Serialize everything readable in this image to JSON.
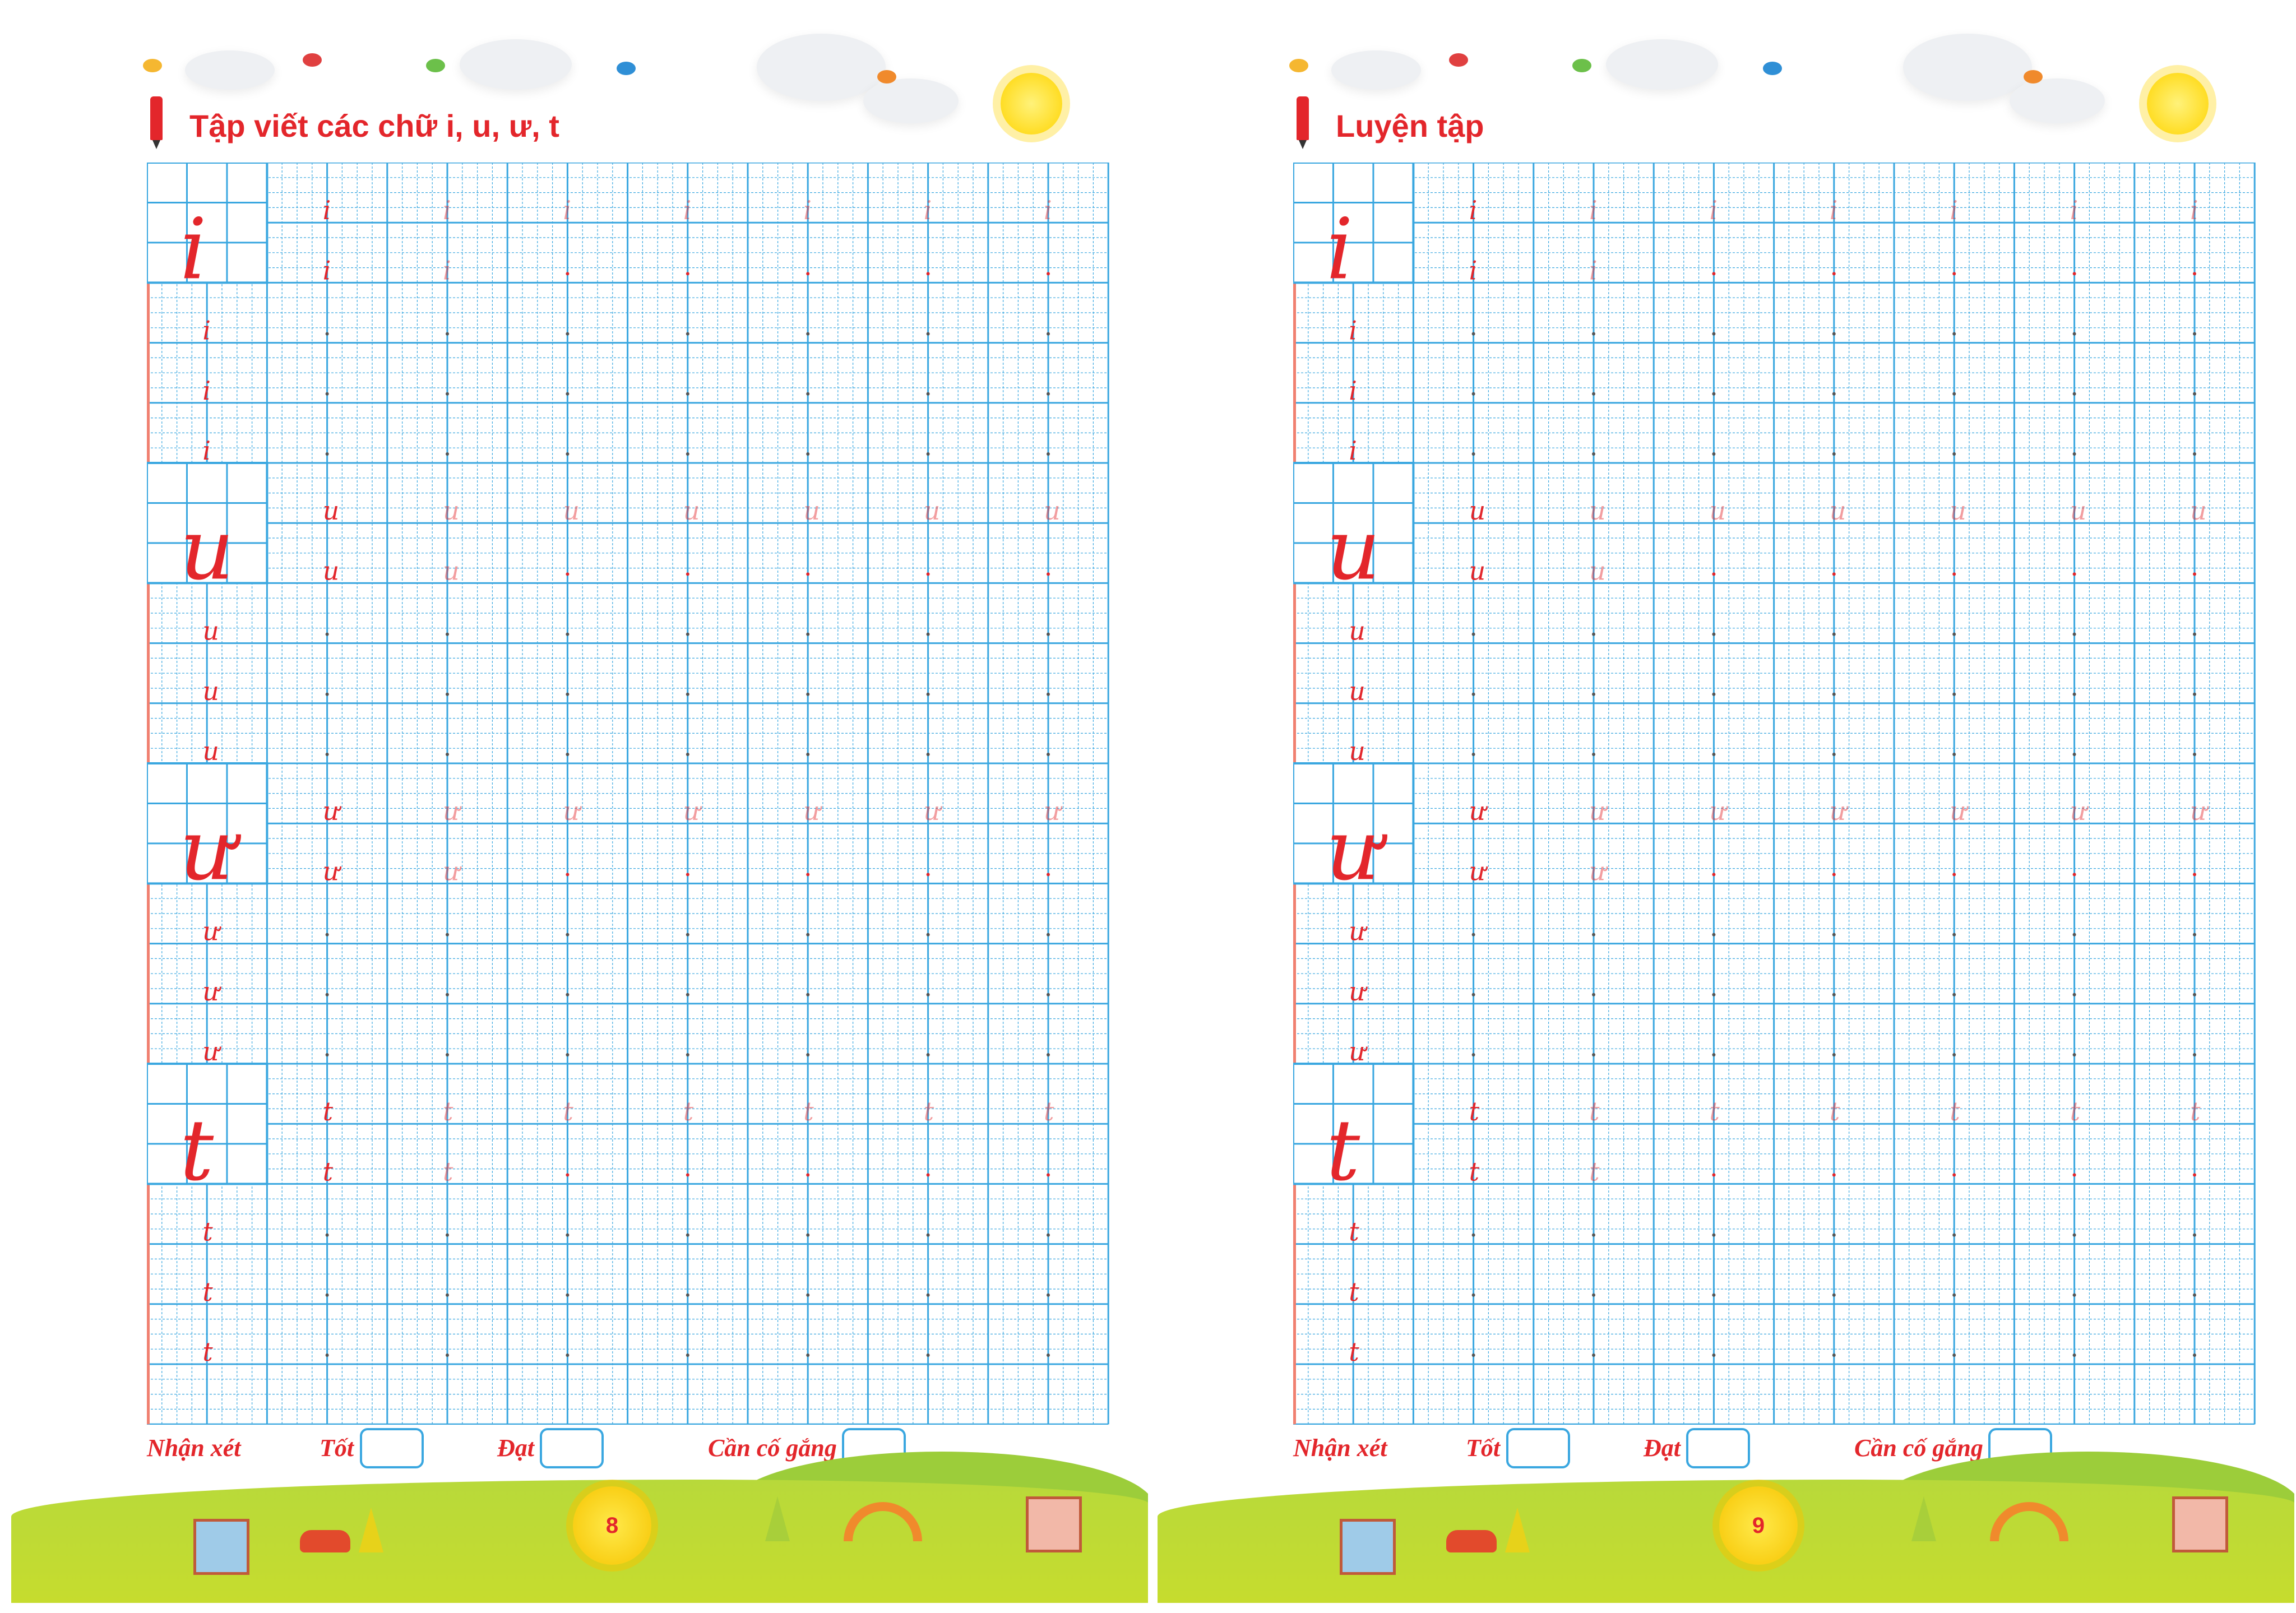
{
  "colors": {
    "grid": "#3aa7e0",
    "accent": "#e3262b",
    "margin_line": "#f08070"
  },
  "pages": [
    {
      "title": "Tập viết các chữ i, u, ư, t",
      "page_number": "8",
      "sections": [
        {
          "letter": "i"
        },
        {
          "letter": "u"
        },
        {
          "letter": "ư"
        },
        {
          "letter": "t"
        }
      ]
    },
    {
      "title": "Luyện tập",
      "page_number": "9",
      "sections": [
        {
          "letter": "i"
        },
        {
          "letter": "u"
        },
        {
          "letter": "ư"
        },
        {
          "letter": "t"
        }
      ]
    }
  ],
  "footer": {
    "comment_label": "Nhận xét",
    "good_label": "Tốt",
    "pass_label": "Đạt",
    "try_label": "Cần cố gắng"
  }
}
